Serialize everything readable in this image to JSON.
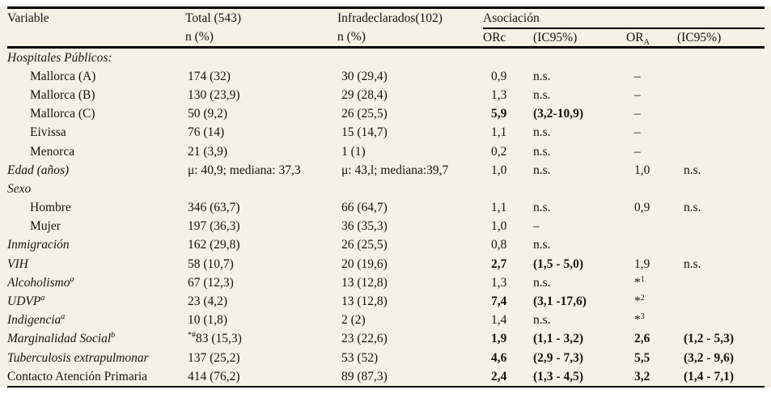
{
  "meta": {
    "background_color": "#f5f1e4",
    "rule_color": "#000000",
    "text_color": "#151412"
  },
  "header": {
    "variable": "Variable",
    "total": "Total (543)",
    "infradeclarados": "Infradeclarados(102)",
    "asociacion": "Asociación",
    "n_pct_total": "n (%)",
    "n_pct_infra": "n (%)",
    "orc": "ORc",
    "ic95_crudo": "(IC95%)",
    "ora_base": "OR",
    "ora_sub": "A",
    "ic95_ajustado": "(IC95%)"
  },
  "rows": [
    {
      "label": "Hospitales Públicos:",
      "italic": true,
      "indent": false,
      "total": "",
      "infra": "",
      "orc": "",
      "ic1": "",
      "ora": "",
      "ic2": ""
    },
    {
      "label": "Mallorca (A)",
      "italic": false,
      "indent": true,
      "total": "174 (32)",
      "infra": "30 (29,4)",
      "orc": "0,9",
      "ic1": "n.s.",
      "ora": "–",
      "ic2": ""
    },
    {
      "label": "Mallorca (B)",
      "italic": false,
      "indent": true,
      "total": "130 (23,9)",
      "infra": "29 (28,4)",
      "orc": "1,3",
      "ic1": "n.s.",
      "ora": "–",
      "ic2": ""
    },
    {
      "label": "Mallorca (C)",
      "italic": false,
      "indent": true,
      "total": "50 (9,2)",
      "infra": "26 (25,5)",
      "orc": "5,9",
      "orc_bold": true,
      "ic1": "(3,2-10,9)",
      "ic1_bold": true,
      "ora": "–",
      "ic2": ""
    },
    {
      "label": "Eivissa",
      "italic": false,
      "indent": true,
      "total": "76 (14)",
      "infra": "15 (14,7)",
      "orc": "1,1",
      "ic1": "n.s.",
      "ora": "–",
      "ic2": ""
    },
    {
      "label": "Menorca",
      "italic": false,
      "indent": true,
      "total": "21 (3,9)",
      "infra": "1 (1)",
      "orc": "0,2",
      "ic1": "n.s.",
      "ora": "–",
      "ic2": ""
    },
    {
      "label": "Edad (años)",
      "italic": true,
      "indent": false,
      "total": "μ: 40,9; mediana: 37,3",
      "infra": "μ: 43,l; mediana:39,7",
      "orc": "1,0",
      "ic1": "n.s.",
      "ora": "1,0",
      "ic2": "n.s."
    },
    {
      "label": "Sexo",
      "italic": true,
      "indent": false,
      "total": "",
      "infra": "",
      "orc": "",
      "ic1": "",
      "ora": "",
      "ic2": ""
    },
    {
      "label": "Hombre",
      "italic": false,
      "indent": true,
      "total": "346 (63,7)",
      "infra": "66 (64,7)",
      "orc": "1,1",
      "ic1": "n.s.",
      "ora": "0,9",
      "ic2": "n.s."
    },
    {
      "label": "Mujer",
      "italic": false,
      "indent": true,
      "total": "197 (36,3)",
      "infra": "36 (35,3)",
      "orc": "1,0",
      "ic1": "–",
      "ora": "",
      "ic2": ""
    },
    {
      "label": "Inmigración",
      "italic": true,
      "indent": false,
      "total": "162 (29,8)",
      "infra": "26 (25,5)",
      "orc": "0,8",
      "ic1": "n.s.",
      "ora": "",
      "ic2": ""
    },
    {
      "label": "VIH",
      "italic": true,
      "indent": false,
      "total": "58 (10,7)",
      "infra": "20 (19,6)",
      "orc": "2,7",
      "orc_bold": true,
      "ic1": "(1,5 - 5,0)",
      "ic1_bold": true,
      "ora": "1,9",
      "ic2": "n.s."
    },
    {
      "label": "Alcoholismo",
      "label_sup": "a",
      "italic": true,
      "indent": false,
      "total": "67 (12,3)",
      "infra": "13 (12,8)",
      "orc": "1,3",
      "ic1": "n.s.",
      "ora": "*",
      "ora_sup": "1",
      "ic2": ""
    },
    {
      "label": "UDVP",
      "label_sup": "a",
      "italic": true,
      "indent": false,
      "total": "23 (4,2)",
      "infra": "13 (12,8)",
      "orc": "7,4",
      "orc_bold": true,
      "ic1": "(3,1 -17,6)",
      "ic1_bold": true,
      "ora": "*",
      "ora_sup": "2",
      "ic2": ""
    },
    {
      "label": "Indigencia",
      "label_sup": "a",
      "italic": true,
      "indent": false,
      "total": "10 (1,8)",
      "infra": "2 (2)",
      "orc": "1,4",
      "ic1": "n.s.",
      "ora": "*",
      "ora_sup": "3",
      "ic2": ""
    },
    {
      "label": "Marginalidad Social",
      "label_sup": "b",
      "italic": true,
      "indent": false,
      "total_presup": "*#",
      "total": "83 (15,3)",
      "infra": "23 (22,6)",
      "orc": "1,9",
      "orc_bold": true,
      "ic1": "(1,1 - 3,2)",
      "ic1_bold": true,
      "ora": "2,6",
      "ora_bold": true,
      "ic2": "(1,2 - 5,3)",
      "ic2_bold": true
    },
    {
      "label": "Tuberculosis extrapulmonar",
      "italic": true,
      "indent": false,
      "total": "137 (25,2)",
      "infra": "53 (52)",
      "orc": "4,6",
      "orc_bold": true,
      "ic1": "(2,9 - 7,3)",
      "ic1_bold": true,
      "ora": "5,5",
      "ora_bold": true,
      "ic2": "(3,2 - 9,6)",
      "ic2_bold": true
    },
    {
      "label": "Contacto Atención Primaria",
      "italic": false,
      "indent": false,
      "total": "414 (76,2)",
      "infra": "89 (87,3)",
      "orc": "2,4",
      "orc_bold": true,
      "ic1": "(1,3 - 4,5)",
      "ic1_bold": true,
      "ora": "3,2",
      "ora_bold": true,
      "ic2": "(1,4 - 7,1)",
      "ic2_bold": true
    }
  ]
}
